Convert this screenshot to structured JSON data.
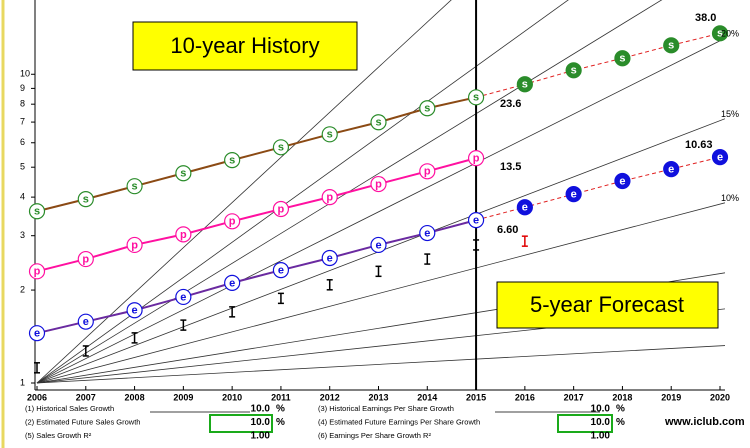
{
  "chart_data": {
    "type": "log_line",
    "history_label": "10-year History",
    "forecast_label": "5-year Forecast",
    "x": [
      2006,
      2007,
      2008,
      2009,
      2010,
      2011,
      2012,
      2013,
      2014,
      2015,
      2016,
      2017,
      2018,
      2019,
      2020
    ],
    "xlim": [
      2006,
      2020
    ],
    "xticks": [
      2006,
      2007,
      2008,
      2009,
      2010,
      2011,
      2012,
      2013,
      2014,
      2015,
      2016,
      2017,
      2018,
      2019,
      2020
    ],
    "ylim": [
      1,
      17.4
    ],
    "yticks": [
      1,
      2,
      3,
      4,
      5,
      6,
      7,
      8,
      9,
      10
    ],
    "log_scale": true,
    "history_end": 2015,
    "series": [
      {
        "marker": "s",
        "color": "#2a8c2a",
        "line_color": "#8b4a14",
        "values": [
          3.6,
          3.94,
          4.34,
          4.78,
          5.27,
          5.8,
          6.39,
          6.99,
          7.76,
          8.42,
          9.28,
          10.3,
          11.27,
          12.41,
          13.57
        ]
      },
      {
        "marker": "p",
        "color": "#ff10a0",
        "line_color": "#ff10a0",
        "values": [
          2.3,
          2.52,
          2.8,
          3.03,
          3.34,
          3.66,
          4.0,
          4.41,
          4.85,
          5.35,
          null,
          null,
          null,
          null,
          null
        ]
      },
      {
        "marker": "e",
        "color": "#1010dd",
        "line_color": "#6a2aa0",
        "values": [
          1.45,
          1.58,
          1.72,
          1.9,
          2.11,
          2.32,
          2.54,
          2.8,
          3.06,
          3.37,
          3.71,
          4.09,
          4.51,
          4.93,
          5.39
        ]
      }
    ],
    "ranges": {
      "values": [
        1.12,
        1.27,
        1.4,
        1.54,
        1.7,
        1.88,
        2.08,
        2.3,
        2.52,
        2.8,
        2.88,
        null,
        null,
        null,
        null
      ],
      "colors": [
        "#000",
        "#000",
        "#000",
        "#000",
        "#000",
        "#000",
        "#000",
        "#000",
        "#000",
        "#000",
        "#e00000",
        null,
        null,
        null,
        null
      ]
    },
    "forecast_color": "#e02020",
    "guides": [
      {
        "rate": 2
      },
      {
        "rate": 4
      },
      {
        "rate": 6
      },
      {
        "rate": 10,
        "label": "10%"
      },
      {
        "rate": 15,
        "label": "15%"
      },
      {
        "rate": 20,
        "label": "20%"
      },
      {
        "rate": 25
      },
      {
        "rate": 30
      },
      {
        "rate": 40
      }
    ],
    "annotations": [
      "38.0",
      "23.6",
      "13.5",
      "10.63",
      "6.60"
    ]
  },
  "growth_table": {
    "rows": [
      [
        {
          "label": "(1) Historical Sales Growth",
          "value": "10.0",
          "unit": "%"
        },
        {
          "label": "(3) Historical Earnings Per Share Growth",
          "value": "10.0",
          "unit": "%"
        }
      ],
      [
        {
          "label": "(2) Estimated Future Sales Growth",
          "value": "10.0",
          "unit": "%"
        },
        {
          "label": "(4) Estimated Future Earnings Per Share Growth",
          "value": "10.0",
          "unit": "%"
        }
      ],
      [
        {
          "label": "(5) Sales Growth R²",
          "value": "1.00"
        },
        {
          "label": "(6) Earnings Per Share Growth R²",
          "value": "1.00"
        }
      ]
    ],
    "site": "www.iclub.com"
  }
}
